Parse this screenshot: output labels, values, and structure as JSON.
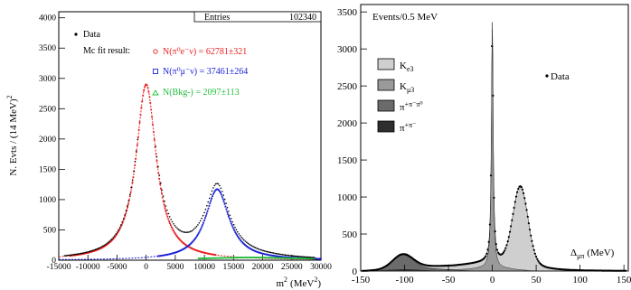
{
  "left_panel": {
    "ylabel": "N. Evts / (14 MeV)",
    "ylabel_sup": "2",
    "xlabel": "m",
    "xlabel_sup1": "2",
    "xlabel_unit": "(MeV",
    "xlabel_sup2": "2",
    "xlabel_close": ")",
    "stats_label": "Entries",
    "stats_value": "102340",
    "legend_data": "Data",
    "fit_title": "Mc fit result:",
    "fit_ke3": "N(π⁰e⁻ν) = 62781±321",
    "fit_kmu3": "N(π⁰μ⁻ν) = 37461±264",
    "fit_bkg": "N(Bkg-) = 2097±113",
    "yticks": [
      "0",
      "500",
      "1000",
      "1500",
      "2000",
      "2500",
      "3000",
      "3500",
      "4000"
    ],
    "xticks": [
      "-15000",
      "-10000",
      "-5000",
      "0",
      "5000",
      "10000",
      "15000",
      "20000",
      "25000",
      "30000"
    ]
  },
  "right_panel": {
    "title": "Events/0.5 MeV",
    "data_label": "Data",
    "xlabel": "Δμπ (MeV)",
    "xlabel_main": "Δ",
    "xlabel_sub": "μπ",
    "xlabel_unit": "(MeV)",
    "legend": [
      {
        "main": "K",
        "sub": "e3",
        "sup": ""
      },
      {
        "main": "K",
        "sub": "μ3",
        "sup": ""
      },
      {
        "main": "π",
        "sub": "",
        "sup": "+π⁻π⁰"
      },
      {
        "main": "π",
        "sub": "",
        "sup": "+π⁻"
      }
    ],
    "yticks": [
      "0",
      "500",
      "1000",
      "1500",
      "2000",
      "2500",
      "3000",
      "3500"
    ],
    "xticks": [
      "-150",
      "-100",
      "-50",
      "0",
      "50",
      "100",
      "150"
    ]
  },
  "colors": {
    "ke3_left": "#e8201f",
    "kmu3_left": "#1a22d6",
    "bkg_left": "#1fbf3a",
    "ke3_right": "#cfcfcf",
    "kmu3_right": "#9a9a9a",
    "ppp0_right": "#6b6b6b",
    "pp_right": "#2e2e2e"
  },
  "chart_data": [
    {
      "type": "scatter",
      "xlabel": "m2 (MeV2)",
      "ylabel": "N. Evts / (14 MeV)2",
      "xlim": [
        -15000,
        30000
      ],
      "ylim": [
        0,
        4100
      ],
      "series": [
        {
          "name": "N(π⁰e⁻ν) = 62781±321",
          "peak_x": 0,
          "peak_y": 2900,
          "width": 2500,
          "x": [
            -10000,
            -7500,
            -5000,
            -3000,
            -2000,
            -1000,
            0,
            1000,
            2000,
            3000,
            5000,
            7500,
            10000,
            15000
          ],
          "values": [
            40,
            110,
            380,
            1000,
            1550,
            2350,
            2900,
            2350,
            1550,
            1000,
            430,
            140,
            50,
            10
          ]
        },
        {
          "name": "N(π⁰μ⁻ν) = 37461±264",
          "peak_x": 12000,
          "peak_y": 1170,
          "width": 2800,
          "x": [
            5000,
            7000,
            9000,
            10500,
            11500,
            12000,
            12500,
            14000,
            16000,
            18000,
            20000,
            25000,
            30000
          ],
          "values": [
            60,
            180,
            480,
            850,
            1100,
            1170,
            1120,
            780,
            380,
            190,
            100,
            30,
            10
          ]
        },
        {
          "name": "N(Bkg-) = 2097±113",
          "x": [
            10000,
            15000,
            20000,
            25000,
            28000
          ],
          "values": [
            10,
            20,
            25,
            20,
            10
          ]
        }
      ]
    },
    {
      "type": "area",
      "title": "Events/0.5 MeV",
      "xlabel": "Δμπ (MeV)",
      "xlim": [
        -150,
        150
      ],
      "ylim": [
        0,
        3600
      ],
      "series": [
        {
          "name": "Data",
          "peaks": [
            {
              "x": 0,
              "y": 3300
            },
            {
              "x": 32,
              "y": 960
            },
            {
              "x": -102,
              "y": 180
            }
          ]
        },
        {
          "name": "Ke3",
          "x": [
            -150,
            -100,
            -50,
            -20,
            0,
            10,
            20,
            30,
            33,
            40,
            50,
            70,
            100,
            150
          ],
          "values": [
            0,
            20,
            40,
            70,
            110,
            250,
            600,
            930,
            960,
            850,
            500,
            150,
            30,
            0
          ]
        },
        {
          "name": "Kμ3",
          "x": [
            -30,
            -10,
            -5,
            -2,
            0,
            2,
            5,
            10,
            30
          ],
          "values": [
            20,
            150,
            500,
            1500,
            3280,
            1500,
            500,
            150,
            20
          ]
        },
        {
          "name": "π⁺π⁻π⁰",
          "x": [
            -150,
            -130,
            -110,
            -102,
            -95,
            -80,
            -60,
            -40
          ],
          "values": [
            0,
            50,
            150,
            180,
            160,
            70,
            20,
            0
          ]
        },
        {
          "name": "π⁺π⁻",
          "x": [
            -150,
            -120,
            -100,
            -80,
            -60
          ],
          "values": [
            0,
            10,
            20,
            10,
            0
          ]
        }
      ]
    }
  ]
}
